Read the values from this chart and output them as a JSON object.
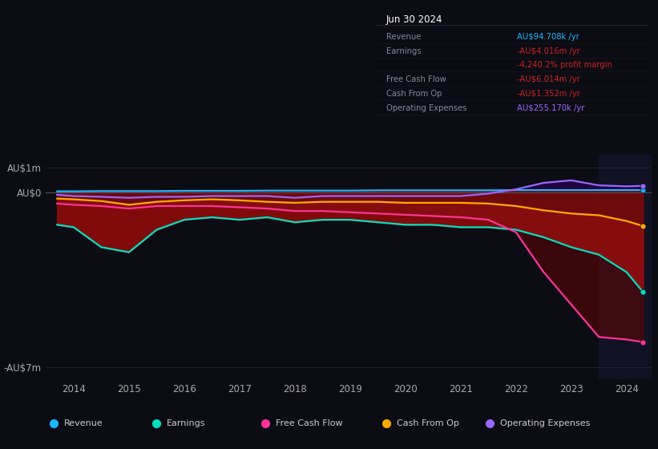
{
  "background_color": "#0c0c14",
  "years": [
    2013.7,
    2014.0,
    2014.5,
    2015.0,
    2015.5,
    2016.0,
    2016.5,
    2017.0,
    2017.5,
    2018.0,
    2018.5,
    2019.0,
    2019.5,
    2020.0,
    2020.5,
    2021.0,
    2021.5,
    2022.0,
    2022.5,
    2023.0,
    2023.5,
    2024.0,
    2024.3
  ],
  "revenue": [
    0.04,
    0.04,
    0.05,
    0.05,
    0.05,
    0.06,
    0.06,
    0.06,
    0.07,
    0.07,
    0.07,
    0.07,
    0.08,
    0.08,
    0.08,
    0.08,
    0.08,
    0.09,
    0.09,
    0.09,
    0.09,
    0.09,
    0.09
  ],
  "earnings": [
    -1.3,
    -1.4,
    -2.2,
    -2.4,
    -1.5,
    -1.1,
    -1.0,
    -1.1,
    -1.0,
    -1.2,
    -1.1,
    -1.1,
    -1.2,
    -1.3,
    -1.3,
    -1.4,
    -1.4,
    -1.5,
    -1.8,
    -2.2,
    -2.5,
    -3.2,
    -4.0
  ],
  "free_cash_flow": [
    -0.45,
    -0.5,
    -0.55,
    -0.65,
    -0.55,
    -0.55,
    -0.55,
    -0.6,
    -0.65,
    -0.75,
    -0.75,
    -0.8,
    -0.85,
    -0.9,
    -0.95,
    -1.0,
    -1.1,
    -1.6,
    -3.2,
    -4.5,
    -5.8,
    -5.9,
    -6.0
  ],
  "cash_from_op": [
    -0.25,
    -0.28,
    -0.35,
    -0.5,
    -0.38,
    -0.32,
    -0.28,
    -0.32,
    -0.38,
    -0.42,
    -0.38,
    -0.38,
    -0.38,
    -0.42,
    -0.42,
    -0.42,
    -0.45,
    -0.55,
    -0.72,
    -0.85,
    -0.92,
    -1.15,
    -1.35
  ],
  "op_expenses": [
    -0.1,
    -0.15,
    -0.18,
    -0.22,
    -0.18,
    -0.18,
    -0.15,
    -0.15,
    -0.15,
    -0.22,
    -0.15,
    -0.15,
    -0.15,
    -0.15,
    -0.15,
    -0.15,
    -0.05,
    0.12,
    0.38,
    0.48,
    0.28,
    0.24,
    0.26
  ],
  "revenue_color": "#1ab8ff",
  "earnings_color": "#00e0c0",
  "free_cash_flow_color": "#ff3399",
  "cash_from_op_color": "#ffaa00",
  "op_expenses_color": "#9966ff",
  "ylim": [
    -7.5,
    1.5
  ],
  "xlim": [
    2013.5,
    2024.45
  ],
  "ytick_positions": [
    1.0,
    0.0,
    -7.0
  ],
  "ytick_labels": [
    "AU$1m",
    "AU$0",
    "-AU$7m"
  ],
  "xtick_years": [
    2014,
    2015,
    2016,
    2017,
    2018,
    2019,
    2020,
    2021,
    2022,
    2023,
    2024
  ],
  "shade_start": 2023.5,
  "shade_end": 2024.45,
  "info_box_date": "Jun 30 2024",
  "info_rows": [
    {
      "label": "Revenue",
      "value": "AU$94.708k /yr",
      "value_color": "#1ab8ff",
      "label_color": "#888899"
    },
    {
      "label": "Earnings",
      "value": "-AU$4.016m /yr",
      "value_color": "#cc2222",
      "label_color": "#888899"
    },
    {
      "label": "",
      "value": "-4,240.2% profit margin",
      "value_color": "#cc2222",
      "label_color": "#888899"
    },
    {
      "label": "Free Cash Flow",
      "value": "-AU$6.014m /yr",
      "value_color": "#cc2222",
      "label_color": "#888899"
    },
    {
      "label": "Cash From Op",
      "value": "-AU$1.352m /yr",
      "value_color": "#cc2222",
      "label_color": "#888899"
    },
    {
      "label": "Operating Expenses",
      "value": "AU$255.170k /yr",
      "value_color": "#9966ff",
      "label_color": "#888899"
    }
  ],
  "legend_items": [
    {
      "label": "Revenue",
      "color": "#1ab8ff"
    },
    {
      "label": "Earnings",
      "color": "#00e0c0"
    },
    {
      "label": "Free Cash Flow",
      "color": "#ff3399"
    },
    {
      "label": "Cash From Op",
      "color": "#ffaa00"
    },
    {
      "label": "Operating Expenses",
      "color": "#9966ff"
    }
  ]
}
